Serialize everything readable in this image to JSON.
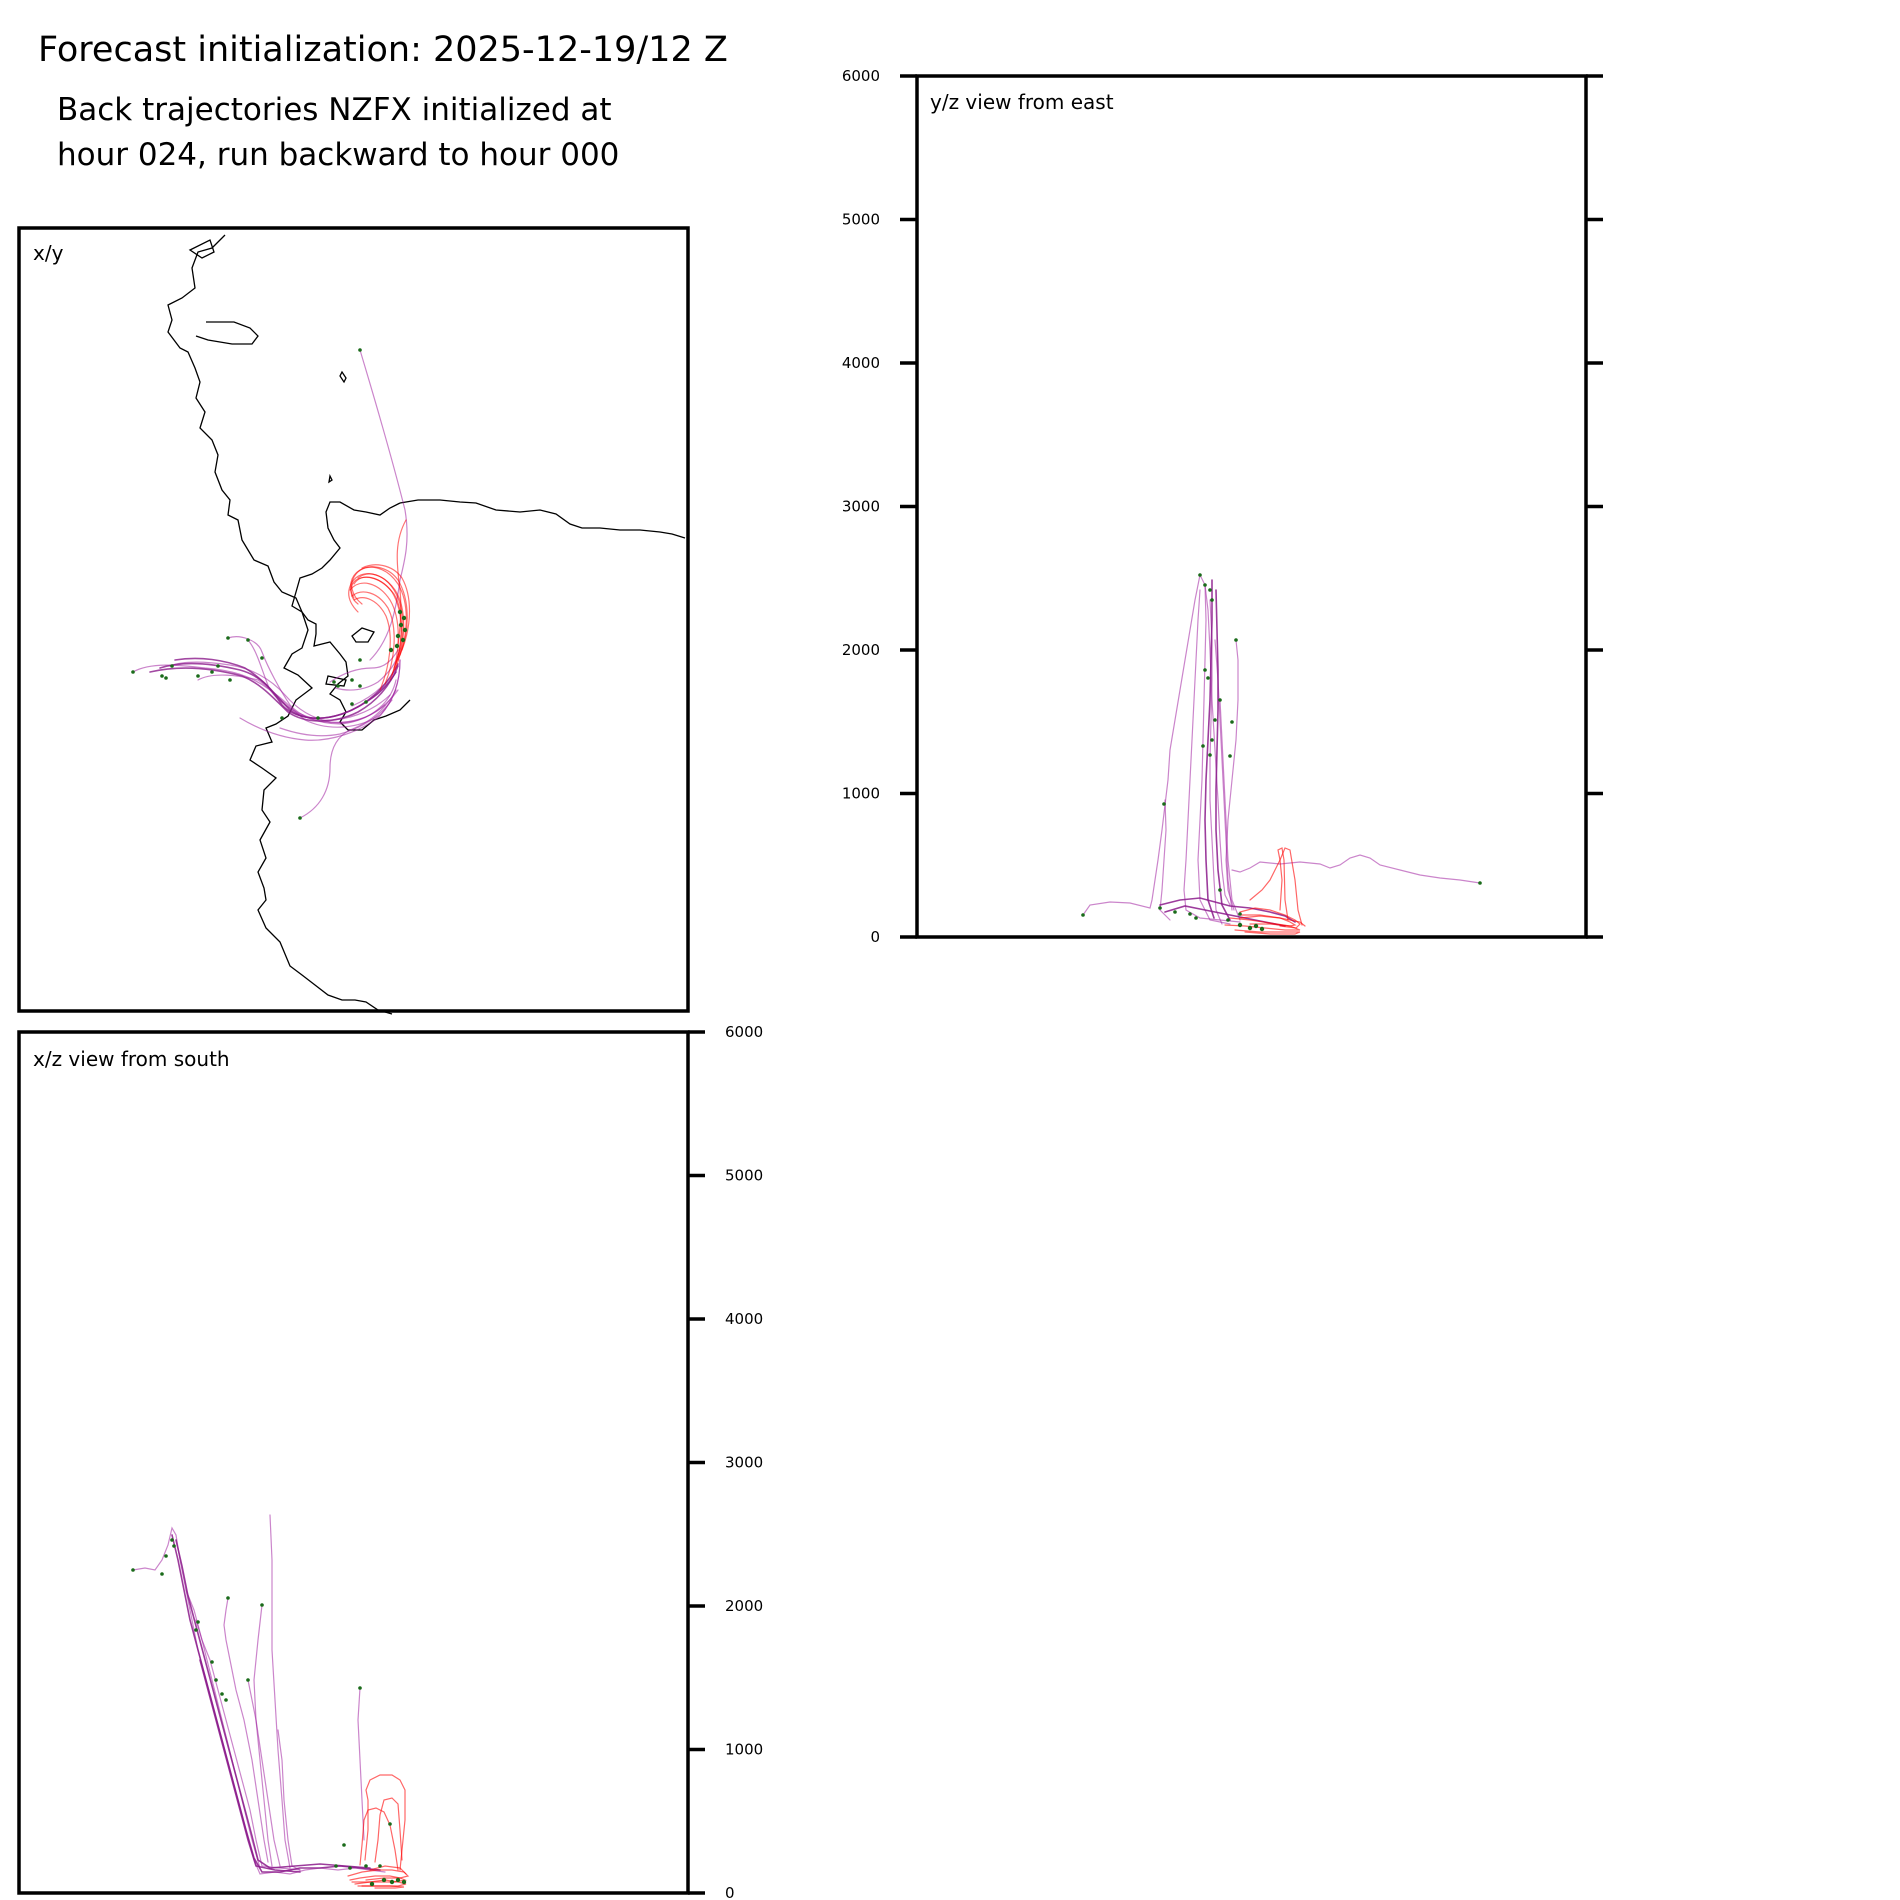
{
  "header": {
    "title": "Forecast initialization: 2025-12-19/12 Z",
    "subtitle_line1": "Back trajectories NZFX initialized at",
    "subtitle_line2": "hour 024, run backward to hour 000"
  },
  "colors": {
    "late_segment": "#ff0000",
    "early_segment": "#a020a0",
    "endpoint_marker": "#1a6b1a",
    "coastline": "#000000"
  },
  "chart_data": [
    {
      "type": "line",
      "panel": "x/y",
      "title": "x/y",
      "description_of_content": "map view with coastline",
      "axis_ticks_shown": false
    },
    {
      "type": "line",
      "panel": "y/z",
      "title": "y/z view from east",
      "ylabel": "",
      "ylim": [
        0,
        6000
      ],
      "yticks": [
        0,
        1000,
        2000,
        3000,
        4000,
        5000,
        6000
      ],
      "ytick_labels": [
        "0",
        "1000",
        "2000",
        "3000",
        "4000",
        "5000",
        "6000"
      ],
      "grid": false
    },
    {
      "type": "line",
      "panel": "x/z",
      "title": "x/z view from south",
      "ylabel": "",
      "ylim": [
        0,
        6000
      ],
      "yticks": [
        0,
        1000,
        2000,
        3000,
        4000,
        5000,
        6000
      ],
      "ytick_labels": [
        "0",
        "1000",
        "2000",
        "3000",
        "4000",
        "5000",
        "6000"
      ],
      "grid": false
    }
  ]
}
